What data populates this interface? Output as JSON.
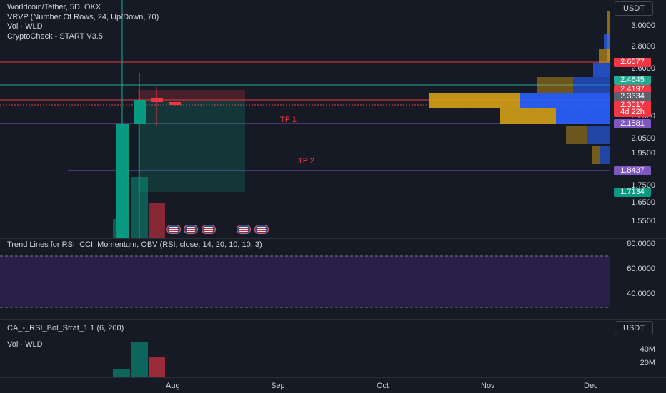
{
  "main": {
    "title": "Worldcoin/Tether, 5D, OKX",
    "legend": [
      "VRVP (Number Of Rows, 24, Up/Down, 70)",
      "Vol · WLD",
      "CryptoCheck - START V3.5"
    ],
    "unit": "USDT",
    "ticks": [
      "3.0000",
      "2.8000",
      "2.6000",
      "2.0500",
      "1.9500",
      "1.7500",
      "1.6500",
      "1.5500"
    ],
    "tags": [
      {
        "text": "2.6577",
        "color": "#f23645"
      },
      {
        "text": "2.4645",
        "color": "#22ab94"
      },
      {
        "text": "2.4197",
        "color": "#f23645"
      },
      {
        "text": "2.3334",
        "color": "#5d606b"
      },
      {
        "text": "2.3017",
        "color": "#f23645"
      },
      {
        "text": "4d 22h",
        "color": "#f23645"
      },
      {
        "text": "2.1581",
        "color": "#7e57c2"
      },
      {
        "text": "1.8437",
        "color": "#7e57c2"
      },
      {
        "text": "1.7134",
        "color": "#089981"
      }
    ],
    "tp1": "TP 1",
    "tp2": "TP 2",
    "partial_tick": "2.2000"
  },
  "rsi": {
    "title": "Trend Lines for RSI, CCI, Momentum, OBV (RSI, close, 14, 20, 10, 10, 3)",
    "ticks": [
      "80.0000",
      "60.0000",
      "40.0000"
    ]
  },
  "vol": {
    "title": "CA_-_RSI_Bol_Strat_1.1 (6, 200)",
    "legend": "Vol · WLD",
    "unit": "USDT",
    "ticks": [
      "40M",
      "20M"
    ]
  },
  "time_axis": [
    "Aug",
    "Sep",
    "Oct",
    "Nov",
    "Dec"
  ],
  "colors": {
    "up": "#089981",
    "down": "#f23645",
    "vrvp_up": "#2962ff",
    "vrvp_down": "#d4a017",
    "band": "#2a1e4a"
  }
}
